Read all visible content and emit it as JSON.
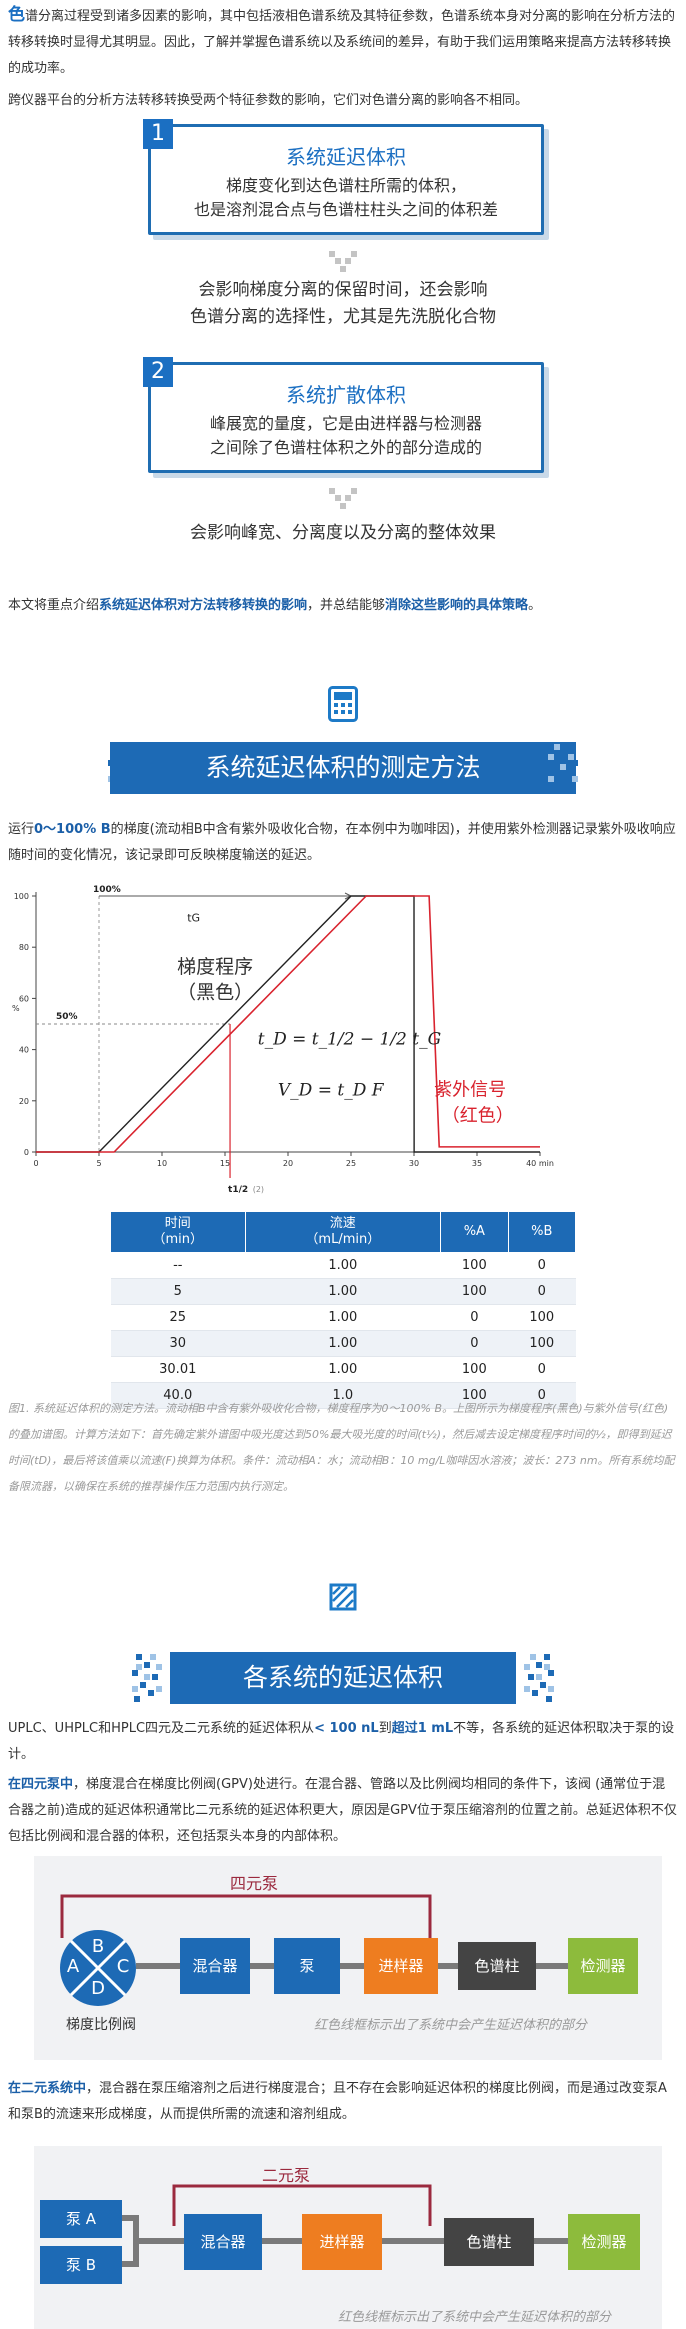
{
  "intro": {
    "dropcap": "色",
    "text": "谱分离过程受到诸多因素的影响，其中包括液相色谱系统及其特征参数，色谱系统本身对分离的影响在分析方法的转移转换时显得尤其明显。因此，了解并掌握色谱系统以及系统间的差异，有助于我们运用策略来提高方法转移转换的成功率。",
    "line2": "跨仪器平台的分析方法转移转换受两个特征参数的影响，它们对色谱分离的影响各不相同。"
  },
  "cards": [
    {
      "num": "1",
      "title": "系统延迟体积",
      "body1": "梯度变化到达色谱柱所需的体积，",
      "body2": "也是溶剂混合点与色谱柱柱头之间的体积差",
      "after1": "会影响梯度分离的保留时间，还会影响",
      "after2": "色谱分离的选择性，尤其是先洗脱化合物"
    },
    {
      "num": "2",
      "title": "系统扩散体积",
      "body1": "峰展宽的量度，它是由进样器与检测器",
      "body2": "之间除了色谱柱体积之外的部分造成的",
      "after1": "会影响峰宽、分离度以及分离的整体效果",
      "after2": ""
    }
  ],
  "summary": {
    "pre": "本文将重点介绍",
    "hl1": "系统延迟体积对方法转移转换的影响",
    "mid": "，并总结能够",
    "hl2": "消除这些影响的具体策略",
    "end": "。"
  },
  "section1": {
    "icon": "calculator-icon",
    "title": "系统延迟体积的测定方法",
    "p_pre": "运行",
    "p_hl": "0～100% B",
    "p_rest": "的梯度(流动相B中含有紫外吸收化合物，在本例中为咖啡因)，并使用紫外检测器记录紫外吸收响应随时间的变化情况，该记录即可反映梯度输送的延迟。"
  },
  "chart_data": {
    "type": "line",
    "x_unit": "min",
    "xlim": [
      0,
      40
    ],
    "ylim": [
      0,
      100
    ],
    "x_ticks": [
      0,
      5,
      10,
      15,
      20,
      25,
      30,
      35,
      40
    ],
    "y_ticks": [
      0,
      20,
      40,
      60,
      80,
      100
    ],
    "y_label": "%",
    "series": [
      {
        "color": "#222222",
        "x": [
          0,
          5,
          25,
          30,
          30.01,
          40
        ],
        "y": [
          0,
          0,
          100,
          100,
          0,
          0
        ]
      },
      {
        "color": "#d9232e",
        "x": [
          0,
          6.2,
          26.2,
          31.2,
          32,
          40
        ],
        "y": [
          0,
          0,
          100,
          100,
          2,
          2
        ]
      }
    ],
    "annotations": {
      "top_pct": "100%",
      "tg": "tG",
      "half_pct": "50%",
      "gradient_label1": "梯度程序",
      "gradient_label2": "（黑色）",
      "uv_label1": "紫外信号",
      "uv_label2": "（红色）",
      "t_half": "t1/2",
      "t_half_note": "(2)",
      "eq1": "t_D = t_1/2 − 1/2 t_G",
      "eq2": "V_D = t_D F"
    },
    "table": {
      "headers": [
        "时间\n（min）",
        "流速\n（mL/min）",
        "%A",
        "%B"
      ],
      "rows": [
        [
          "--",
          "1.00",
          "100",
          "0"
        ],
        [
          "5",
          "1.00",
          "100",
          "0"
        ],
        [
          "25",
          "1.00",
          "0",
          "100"
        ],
        [
          "30",
          "1.00",
          "0",
          "100"
        ],
        [
          "30.01",
          "1.00",
          "100",
          "0"
        ],
        [
          "40.0",
          "1.0",
          "100",
          "0"
        ]
      ]
    }
  },
  "caption": "图1. 系统延迟体积的测定方法。流动相B中含有紫外吸收化合物，梯度程序为0～100% B。上图所示为梯度程序(黑色)与紫外信号(红色)的叠加谱图。计算方法如下：首先确定紫外谱图中吸光度达到50%最大吸光度的时间(t½)，然后减去设定梯度程序时间的½，即得到延迟时间(tD)，最后将该值乘以流速(F)换算为体积。条件：流动相A：水；流动相B：10 mg/L咖啡因水溶液；波长：273 nm。所有系统均配备限流器，以确保在系统的推荐操作压力范围内执行测定。",
  "section2": {
    "icon": "hatched-diamond-icon",
    "title": "各系统的延迟体积",
    "p1_pre": "UPLC、UHPLC和HPLC四元及二元系统的延迟体积从",
    "p1_hl1": "< 100 nL",
    "p1_mid": "到",
    "p1_hl2": "超过1 mL",
    "p1_end": "不等，各系统的延迟体积取决于泵的设计。",
    "p2_hl": "在四元泵中",
    "p2_rest": "，梯度混合在梯度比例阀(GPV)处进行。在混合器、管路以及比例阀均相同的条件下，该阀 (通常位于混合器之前)造成的延迟体积通常比二元系统的延迟体积更大，原因是GPV位于泵压缩溶剂的位置之前。总延迟体积不仅包括比例阀和混合器的体积，还包括泵头本身的内部体积。",
    "p3_hl": "在二元系统中",
    "p3_rest": "，混合器在泵压缩溶剂之后进行梯度混合；且不存在会影响延迟体积的梯度比例阀，而是通过改变泵A和泵B的流速来形成梯度，从而提供所需的流速和溶剂组成。"
  },
  "quat": {
    "label": "四元泵",
    "valve": [
      "B",
      "A",
      "C",
      "D"
    ],
    "valve_label": "梯度比例阀",
    "boxes": [
      "混合器",
      "泵",
      "进样器",
      "色谱柱",
      "检测器"
    ],
    "note": "红色线框标示出了系统中会产生延迟体积的部分"
  },
  "binary": {
    "label": "二元泵",
    "pumps": [
      "泵 A",
      "泵 B"
    ],
    "boxes": [
      "混合器",
      "进样器",
      "色谱柱",
      "检测器"
    ],
    "note": "红色线框标示出了系统中会产生延迟体积的部分"
  },
  "colors": {
    "blue": "#1d6ab5",
    "orange": "#ee7d20",
    "green": "#8dbb3c",
    "dark": "#444444",
    "red_line": "#9b2a3e"
  }
}
